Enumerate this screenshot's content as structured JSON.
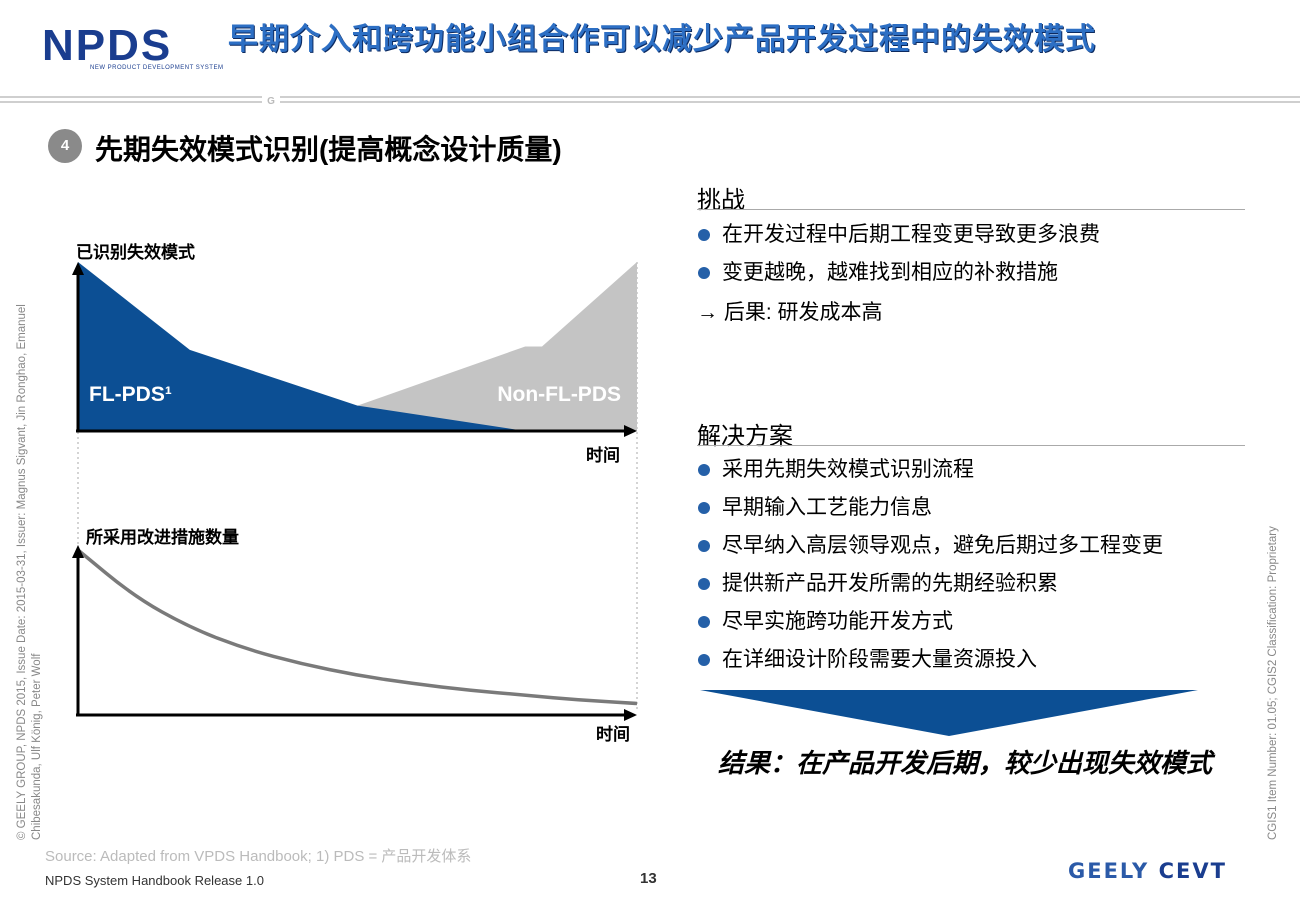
{
  "header": {
    "logo_text": "NPDS",
    "logo_subtitle": "NEW PRODUCT DEVELOPMENT SYSTEM",
    "title": "早期介入和跨功能小组合作可以减少产品开发过程中的失效模式"
  },
  "section": {
    "number": "4",
    "title": "先期失效模式识别(提高概念设计质量)"
  },
  "side_text": {
    "copyright": "© GEELY GROUP, NPDS 2015, Issue Date: 2015-03-31, Issuer: Magnus Sigvant, Jin Ronghao, Emanuel Chibesakunda, Ulf König, Peter Wolf",
    "classification": "CGIS1 Item Number: 01.05; CGIS2 Classification: Proprietary"
  },
  "chart_data": [
    {
      "type": "area",
      "ylabel": "已识别失效模式",
      "xlabel": "时间",
      "ylim": [
        0,
        100
      ],
      "series": [
        {
          "name": "FL-PDS¹",
          "color": "#0c4f94",
          "x": [
            0,
            0.2,
            0.5,
            0.8
          ],
          "y": [
            100,
            48,
            15,
            0
          ]
        },
        {
          "name": "Non-FL-PDS",
          "color": "#c4c4c4",
          "x": [
            0.5,
            0.8,
            0.83,
            1.0
          ],
          "y": [
            15,
            50,
            50,
            100
          ]
        }
      ]
    },
    {
      "type": "line",
      "ylabel": "所采用改进措施数量",
      "xlabel": "时间",
      "ylim": [
        0,
        100
      ],
      "series": [
        {
          "color": "#7a7a7a",
          "x": [
            0,
            0.1,
            0.2,
            0.3,
            0.4,
            0.5,
            0.6,
            0.7,
            0.8,
            0.9,
            1.0
          ],
          "y": [
            100,
            72,
            53,
            40,
            31,
            24,
            19,
            15,
            12,
            9,
            7
          ]
        }
      ]
    }
  ],
  "challenge": {
    "heading": "挑战",
    "bullets": [
      "在开发过程中后期工程变更导致更多浪费",
      "变更越晚，越难找到相应的补救措施"
    ],
    "arrow_glyph": "→",
    "consequence": "后果: 研发成本高"
  },
  "solution": {
    "heading": "解决方案",
    "bullets": [
      "采用先期失效模式识别流程",
      "早期输入工艺能力信息",
      "尽早纳入高层领导观点，避免后期过多工程变更",
      "提供新产品开发所需的先期经验积累",
      "尽早实施跨功能开发方式",
      "在详细设计阶段需要大量资源投入"
    ]
  },
  "result": {
    "text": "结果：在产品开发后期，较少出现失效模式"
  },
  "footer": {
    "source": "Source: Adapted from VPDS Handbook; 1) PDS = 产品开发体系",
    "left": "NPDS System Handbook Release 1.0",
    "page_number": "13",
    "logo_geely": "GEELY",
    "logo_cevt": "CEVT"
  },
  "colors": {
    "accent_blue": "#0c4f94",
    "bullet_blue": "#2560a8",
    "title_blue": "#2d6fc4",
    "grey_area": "#c4c4c4"
  }
}
